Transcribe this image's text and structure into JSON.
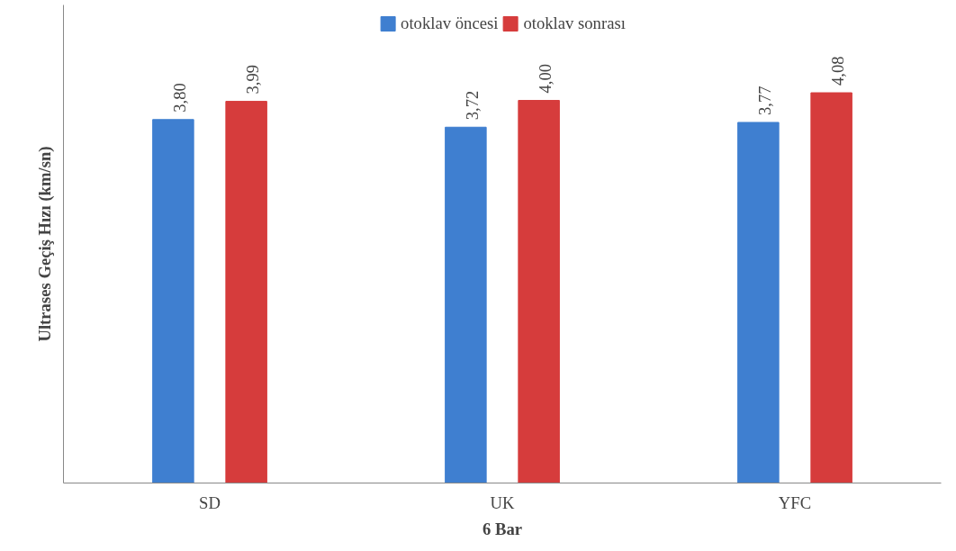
{
  "chart_data": {
    "type": "bar",
    "xlabel": "6 Bar",
    "ylabel": "Ultrases Geçiş Hızı (km/sn)",
    "categories": [
      "SD",
      "UK",
      "YFC"
    ],
    "series": [
      {
        "name": "otoklav öncesi",
        "color": "#3f7fd0",
        "values": [
          3.8,
          3.72,
          3.77
        ],
        "value_labels": [
          "3,80",
          "3,72",
          "3,77"
        ]
      },
      {
        "name": "otoklav sonrası",
        "color": "#d63c3c",
        "values": [
          3.99,
          4.0,
          4.08
        ],
        "value_labels": [
          "3,99",
          "4,00",
          "4,08"
        ]
      }
    ],
    "tick_labels": "x",
    "legend": "top",
    "grid": false
  }
}
